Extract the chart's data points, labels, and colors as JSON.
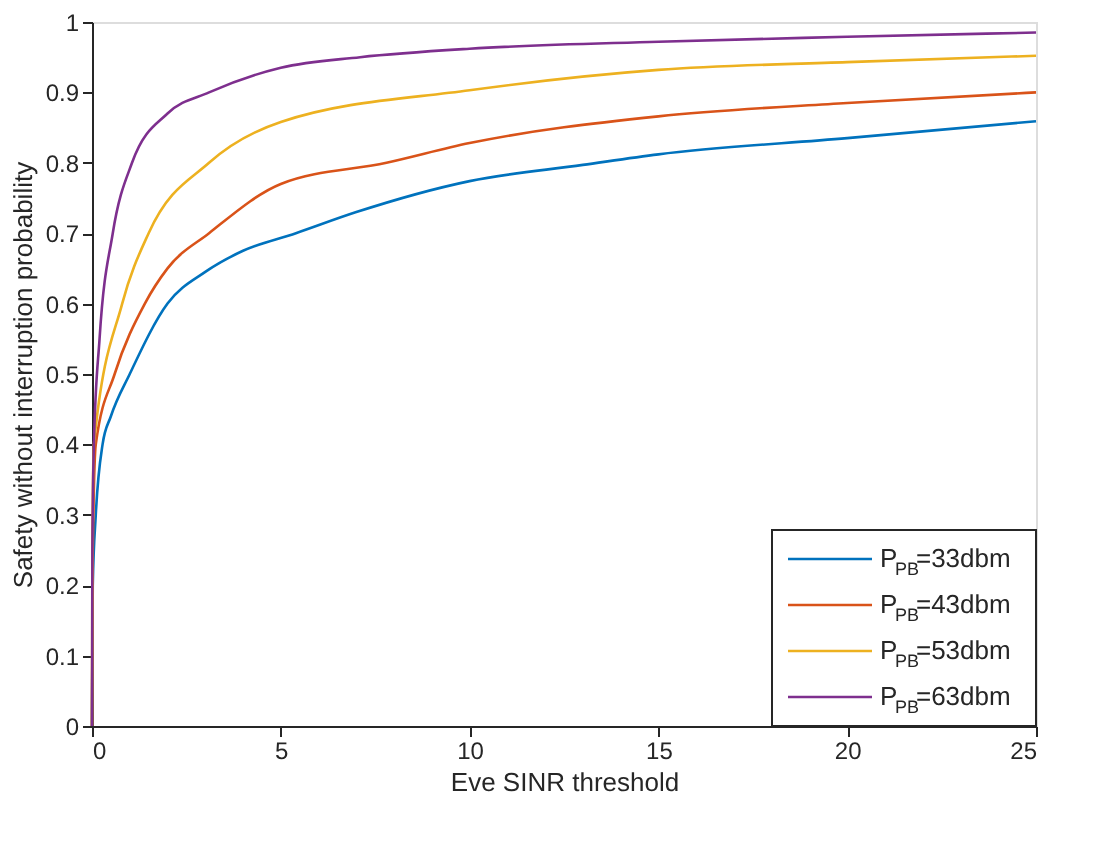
{
  "chart_data": {
    "type": "line",
    "xlabel": "Eve SINR threshold",
    "ylabel": "Safety without interruption probability",
    "xlim": [
      0,
      25
    ],
    "xticks": [
      0,
      5,
      10,
      15,
      20,
      25
    ],
    "ylim": [
      0,
      1
    ],
    "yticks": [
      0,
      0.1,
      0.2,
      0.3,
      0.4,
      0.5,
      0.6,
      0.7,
      0.8,
      0.9,
      1
    ],
    "grid": false,
    "legend": "bottom right",
    "marker": "none",
    "line_style": "solid",
    "series": [
      {
        "name": "P$_{PB}$=33dbm",
        "color": "#0072bd",
        "x": [
          0,
          0.02,
          0.1,
          0.28,
          0.5,
          1,
          2,
          3,
          4,
          5.4,
          7,
          10,
          13,
          15,
          20,
          25
        ],
        "values": [
          0,
          0.2,
          0.3,
          0.4,
          0.44,
          0.5,
          0.6,
          0.645,
          0.675,
          0.7,
          0.73,
          0.774,
          0.797,
          0.812,
          0.835,
          0.859
        ]
      },
      {
        "name": "P$_{PB}$=43dbm",
        "color": "#d95319",
        "x": [
          0,
          0.02,
          0.1,
          0.6,
          1.4,
          2,
          3.1,
          5,
          7.8,
          10,
          15,
          20,
          25
        ],
        "values": [
          0,
          0.25,
          0.4,
          0.5,
          0.6,
          0.65,
          0.7,
          0.77,
          0.8,
          0.828,
          0.866,
          0.885,
          0.9
        ]
      },
      {
        "name": "P$_{PB}$=53dbm",
        "color": "#edb120",
        "x": [
          0,
          0.01,
          0.05,
          0.8,
          1.5,
          3.1,
          5,
          10,
          15,
          20,
          25
        ],
        "values": [
          0,
          0.25,
          0.4,
          0.6,
          0.7,
          0.8,
          0.858,
          0.903,
          0.932,
          0.943,
          0.952
        ]
      },
      {
        "name": "P$_{PB}$=63dbm",
        "color": "#7e2f8e",
        "x": [
          0,
          0.01,
          0.05,
          0.2,
          0.55,
          1.06,
          2,
          3.1,
          5,
          7.1,
          10,
          15,
          20,
          25
        ],
        "values": [
          0,
          0.25,
          0.4,
          0.55,
          0.7,
          0.8,
          0.87,
          0.9,
          0.935,
          0.95,
          0.962,
          0.972,
          0.979,
          0.985
        ]
      }
    ]
  }
}
